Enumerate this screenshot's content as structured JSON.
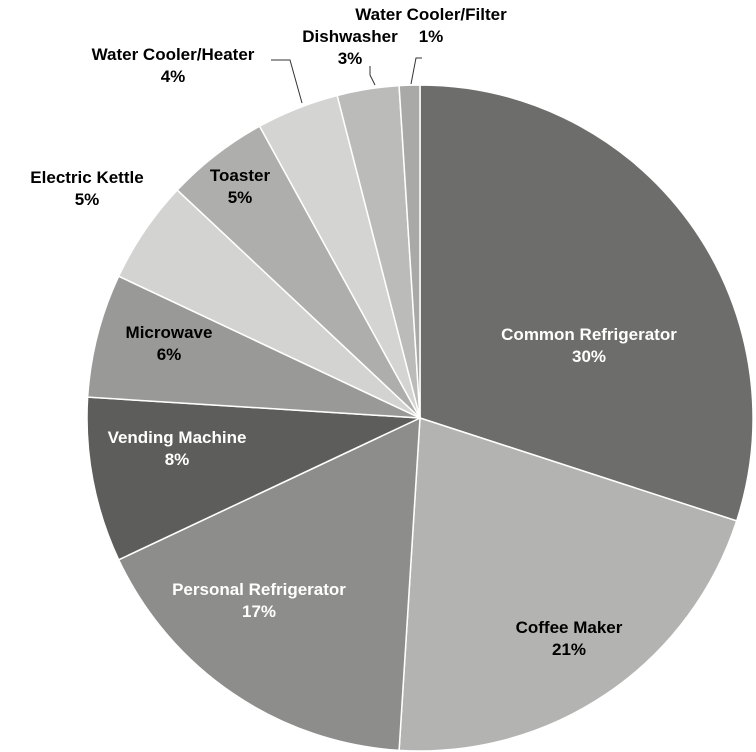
{
  "chart_data": {
    "type": "pie",
    "title": "",
    "start_angle_deg": 0,
    "direction": "clockwise",
    "slices": [
      {
        "label": "Common Refrigerator",
        "value": 30,
        "value_label": "30%",
        "color": "#6d6d6b",
        "label_color": "#ffffff",
        "label_position": "inside"
      },
      {
        "label": "Coffee Maker",
        "value": 21,
        "value_label": "21%",
        "color": "#b3b4b2",
        "label_color": "#000000",
        "label_position": "inside"
      },
      {
        "label": "Personal Refrigerator",
        "value": 17,
        "value_label": "17%",
        "color": "#8d8d8b",
        "label_color": "#ffffff",
        "label_position": "inside"
      },
      {
        "label": "Vending Machine",
        "value": 8,
        "value_label": "8%",
        "color": "#5d5d5b",
        "label_color": "#ffffff",
        "label_position": "inside"
      },
      {
        "label": "Microwave",
        "value": 6,
        "value_label": "6%",
        "color": "#999a98",
        "label_color": "#000000",
        "label_position": "inside"
      },
      {
        "label": "Electric Kettle",
        "value": 5,
        "value_label": "5%",
        "color": "#d3d4d2",
        "label_color": "#000000",
        "label_position": "outside"
      },
      {
        "label": "Toaster",
        "value": 5,
        "value_label": "5%",
        "color": "#aeaeac",
        "label_color": "#000000",
        "label_position": "inside"
      },
      {
        "label": "Water Cooler/Heater",
        "value": 4,
        "value_label": "4%",
        "color": "#d4d5d3",
        "label_color": "#000000",
        "label_position": "outside"
      },
      {
        "label": "Dishwasher",
        "value": 3,
        "value_label": "3%",
        "color": "#bbbbb9",
        "label_color": "#000000",
        "label_position": "outside"
      },
      {
        "label": "Water Cooler/Filter",
        "value": 1,
        "value_label": "1%",
        "color": "#a9aaa8",
        "label_color": "#000000",
        "label_position": "outside"
      }
    ]
  }
}
